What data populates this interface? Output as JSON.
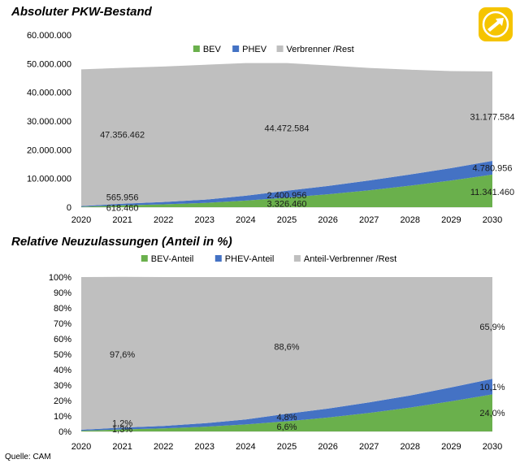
{
  "source_label": "Quelle: CAM",
  "logo": {
    "icon": "plug-arrow-icon",
    "color_outer": "#f5c400",
    "color_inner": "#ffffff"
  },
  "colors": {
    "bev": "#6ab04c",
    "phev": "#4472c4",
    "rest": "#bfbfbf"
  },
  "chart_data": [
    {
      "type": "area",
      "stacked": true,
      "title": "Absoluter PKW-Bestand",
      "xlabel": "",
      "ylabel": "",
      "x": [
        2020,
        2021,
        2022,
        2023,
        2024,
        2025,
        2026,
        2027,
        2028,
        2029,
        2030
      ],
      "ylim": [
        0,
        60000000
      ],
      "yticks": [
        0,
        10000000,
        20000000,
        30000000,
        40000000,
        50000000,
        60000000
      ],
      "ytick_labels": [
        "0",
        "10.000.000",
        "20.000.000",
        "30.000.000",
        "40.000.000",
        "50.000.000",
        "60.000.000"
      ],
      "legend": "top-center",
      "grid": false,
      "series": [
        {
          "name": "BEV",
          "color": "#6ab04c",
          "values": [
            150000,
            618460,
            1000000,
            1500000,
            2300000,
            3326460,
            4500000,
            5900000,
            7500000,
            9300000,
            11341460
          ]
        },
        {
          "name": "PHEV",
          "color": "#4472c4",
          "values": [
            250000,
            565956,
            800000,
            1100000,
            1700000,
            2400956,
            2900000,
            3400000,
            3900000,
            4300000,
            4780956
          ]
        },
        {
          "name": "Verbrenner /Rest",
          "color": "#bfbfbf",
          "values": [
            47600000,
            47356462,
            47200000,
            47000000,
            46200000,
            44472584,
            42000000,
            39200000,
            36500000,
            33800000,
            31177584
          ]
        }
      ],
      "annotations": [
        {
          "text": "47.356.462",
          "x": 2021,
          "y": 25300000
        },
        {
          "text": "44.472.584",
          "x": 2025,
          "y": 27600000
        },
        {
          "text": "31.177.584",
          "x": 2030,
          "y": 31600000
        },
        {
          "text": "565.956",
          "x": 2021,
          "y": 3500000
        },
        {
          "text": "618.460",
          "x": 2021,
          "y": -100000
        },
        {
          "text": "2.400.956",
          "x": 2025,
          "y": 4200000
        },
        {
          "text": "3.326.460",
          "x": 2025,
          "y": 1300000
        },
        {
          "text": "4.780.956",
          "x": 2030,
          "y": 13700000
        },
        {
          "text": "11.341.460",
          "x": 2030,
          "y": 5400000
        }
      ]
    },
    {
      "type": "area",
      "stacked": true,
      "title": "Relative Neuzulassungen (Anteil in %)",
      "xlabel": "",
      "ylabel": "",
      "x": [
        2020,
        2021,
        2022,
        2023,
        2024,
        2025,
        2026,
        2027,
        2028,
        2029,
        2030
      ],
      "ylim": [
        0,
        100
      ],
      "yticks": [
        0,
        10,
        20,
        30,
        40,
        50,
        60,
        70,
        80,
        90,
        100
      ],
      "ytick_labels": [
        "0%",
        "10%",
        "20%",
        "30%",
        "40%",
        "50%",
        "60%",
        "70%",
        "80%",
        "90%",
        "100%"
      ],
      "legend": "top-center",
      "grid": false,
      "series": [
        {
          "name": "BEV-Anteil",
          "color": "#6ab04c",
          "values": [
            0.5,
            1.3,
            2.0,
            3.0,
            4.5,
            6.6,
            9.0,
            12.0,
            15.5,
            19.5,
            24.0
          ]
        },
        {
          "name": "PHEV-Anteil",
          "color": "#4472c4",
          "values": [
            0.6,
            1.2,
            1.6,
            2.3,
            3.3,
            4.8,
            5.8,
            6.8,
            7.8,
            9.0,
            10.1
          ]
        },
        {
          "name": "Anteil-Verbrenner /Rest",
          "color": "#bfbfbf",
          "values": [
            98.9,
            97.6,
            96.4,
            94.7,
            92.2,
            88.6,
            85.2,
            81.2,
            76.7,
            71.5,
            65.9
          ]
        }
      ],
      "annotations": [
        {
          "text": "97,6%",
          "x": 2021,
          "y": 50
        },
        {
          "text": "88,6%",
          "x": 2025,
          "y": 55
        },
        {
          "text": "65,9%",
          "x": 2030,
          "y": 68
        },
        {
          "text": "1,2%",
          "x": 2021,
          "y": 5.5
        },
        {
          "text": "1,3%",
          "x": 2021,
          "y": 1.5
        },
        {
          "text": "4,8%",
          "x": 2025,
          "y": 9.5
        },
        {
          "text": "6,6%",
          "x": 2025,
          "y": 3.2
        },
        {
          "text": "10,1%",
          "x": 2030,
          "y": 29
        },
        {
          "text": "24,0%",
          "x": 2030,
          "y": 12
        }
      ]
    }
  ]
}
